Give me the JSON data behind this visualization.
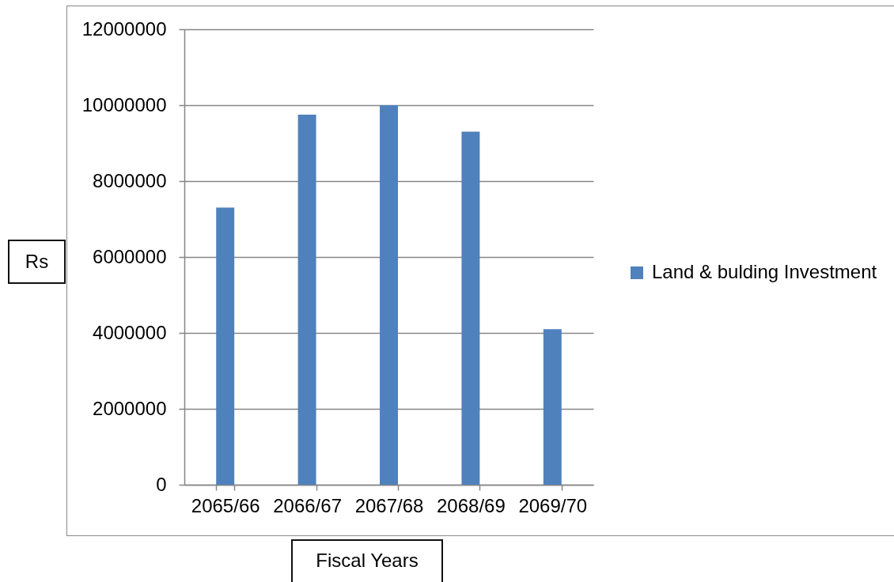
{
  "chart_data": {
    "type": "bar",
    "categories": [
      "2065/66",
      "2066/67",
      "2067/68",
      "2068/69",
      "2069/70"
    ],
    "series": [
      {
        "name": "Land & bulding Investment",
        "color": "#4f81bd",
        "values": [
          7300000,
          9750000,
          10000000,
          9300000,
          4100000
        ]
      }
    ],
    "xlabel": "Fiscal Years",
    "ylabel": "Rs",
    "ylim": [
      0,
      12000000
    ],
    "yticks": [
      0,
      2000000,
      4000000,
      6000000,
      8000000,
      10000000,
      12000000
    ],
    "grid": "y",
    "legend": "right"
  }
}
